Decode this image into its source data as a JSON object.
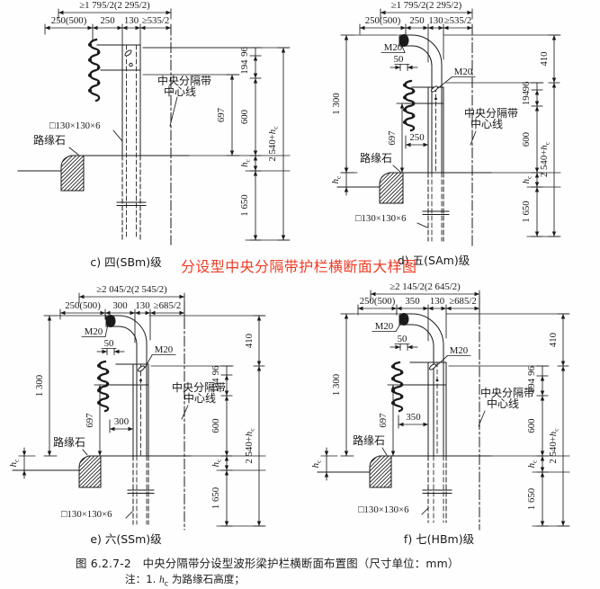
{
  "colors": {
    "ink": "#1b1b1b",
    "annotation_red": "#f03b25",
    "background": "#ffffff"
  },
  "red_annotation": "分设型中央分隔带护栏横断面大样图",
  "figure_caption": "图 6.2.7-2　中央分隔带分设型波形梁护栏横断面布置图（尺寸单位：mm）",
  "note": {
    "prefix": "注：1. ",
    "var_main": "h",
    "var_sub": "c",
    "suffix": " 为路缘石高度；"
  },
  "panels": [
    {
      "key": "c",
      "caption": "c) 四(SBm)级",
      "top_width_label": "≥1 795/2(2 295/2)",
      "top_segment_labels": [
        "250(500)",
        "250",
        "130",
        "≥535/2"
      ],
      "median_label_line1": "中央分隔带",
      "median_label_line2": "中心线",
      "post_section_label": "□130×130×6",
      "curb_label": "路缘石",
      "dim_697": "697",
      "right_chain_labels": [
        "96",
        "194",
        "600",
        "h_c",
        "1 650"
      ],
      "right_outer_labels": [
        "2 540+h_c"
      ]
    },
    {
      "key": "d",
      "caption": "d) 五(SAm)级",
      "top_width_label": "≥1 795/2(2 295/2)",
      "top_segment_labels": [
        "250(500)",
        "250",
        "130",
        "≥535/2"
      ],
      "median_label_line1": "中央分隔带",
      "median_label_line2": "中心线",
      "post_section_label": "□130×130×6",
      "curb_label": "路缘石",
      "bolt_top_label": "M20",
      "bolt_offset_label": "50",
      "bolt_splice_label": "M20",
      "dim_1300": "1 300",
      "dim_697": "697",
      "beam_offset_label": "250",
      "curb_height_label": "h_c",
      "right_chain_labels": [
        "96",
        "194",
        "600",
        "h_c",
        "1 650"
      ],
      "right_outer_labels": [
        "410",
        "2 540+h_c"
      ]
    },
    {
      "key": "e",
      "caption": "e) 六(SSm)级",
      "top_width_label": "≥2 045/2(2 545/2)",
      "top_segment_labels": [
        "250(500)",
        "300",
        "130",
        "≥685/2"
      ],
      "median_label_line1": "中央分隔带",
      "median_label_line2": "中心线",
      "post_section_label": "□130×130×6",
      "curb_label": "路缘石",
      "bolt_top_label": "M20",
      "bolt_offset_label": "50",
      "bolt_splice_label": "M20",
      "dim_1300": "1 300",
      "dim_697": "697",
      "beam_offset_label": "300",
      "curb_height_label": "h_c",
      "right_chain_labels": [
        "96",
        "194",
        "600",
        "h_c",
        "1 650"
      ],
      "right_outer_labels": [
        "410",
        "2 540+h_c"
      ]
    },
    {
      "key": "f",
      "caption": "f) 七(HBm)级",
      "top_width_label": "≥2 145/2(2 645/2)",
      "top_segment_labels": [
        "250(500)",
        "350",
        "130",
        "≥685/2"
      ],
      "median_label_line1": "中央分隔带",
      "median_label_line2": "中心线",
      "post_section_label": "□130×130×6",
      "curb_label": "路缘石",
      "bolt_top_label": "M20",
      "bolt_offset_label": "50",
      "bolt_splice_label": "M20",
      "dim_1300": "1 300",
      "dim_697": "697",
      "beam_offset_label": "350",
      "curb_height_label": "h_c",
      "right_chain_labels": [
        "96",
        "194",
        "600",
        "h_c",
        "1 650"
      ],
      "right_outer_labels": [
        "410",
        "2 540+h_c"
      ]
    }
  ]
}
